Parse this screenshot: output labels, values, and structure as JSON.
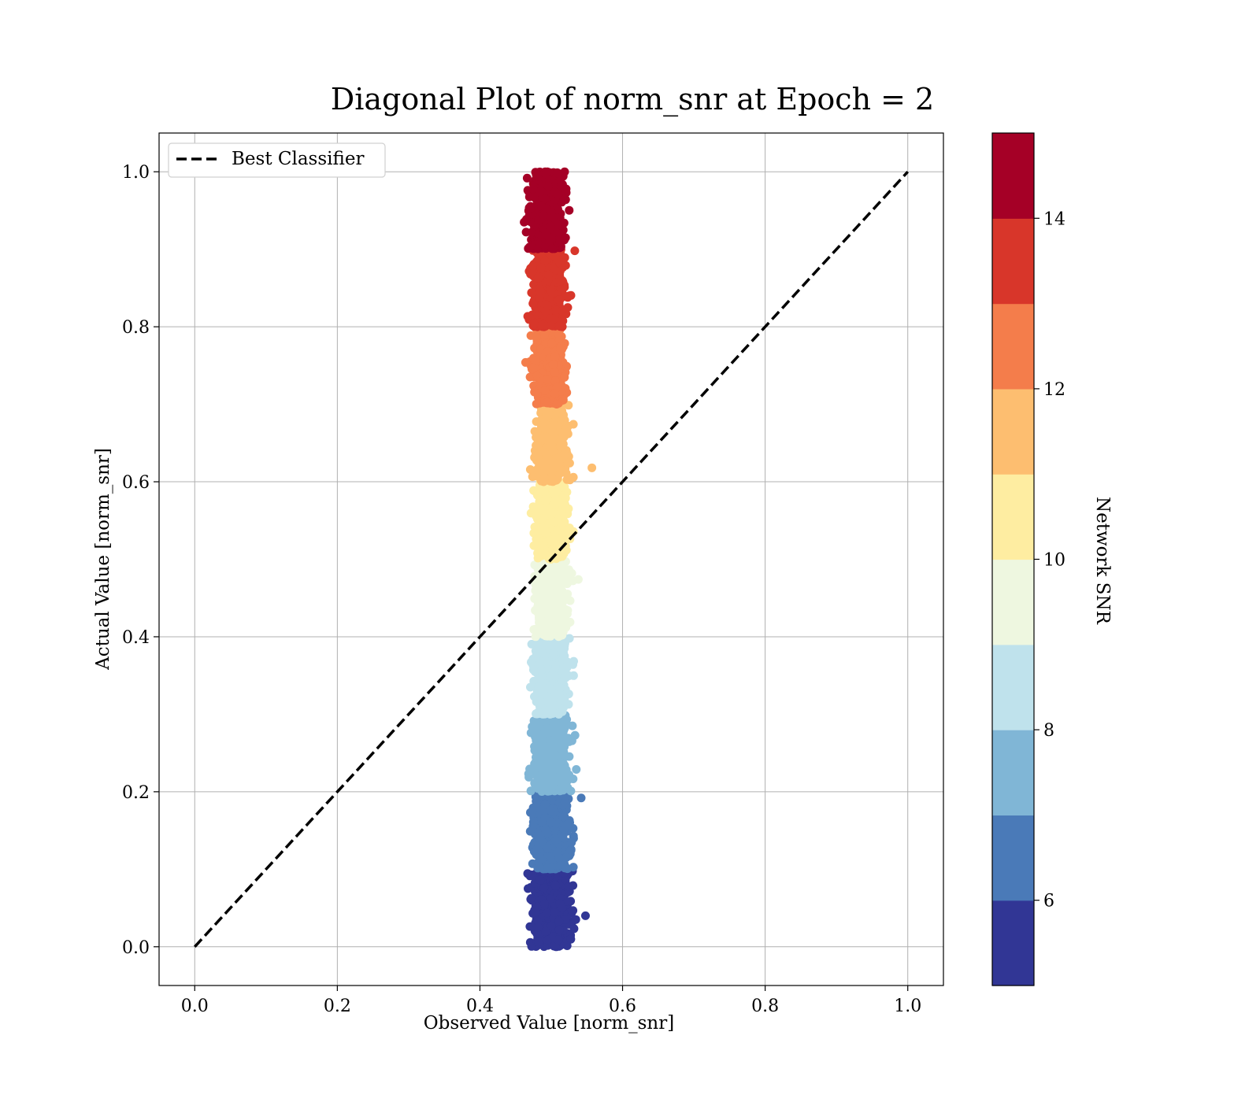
{
  "chart_data": {
    "type": "scatter",
    "title": "Diagonal Plot of norm_snr at Epoch = 2",
    "xlabel": "Observed Value [norm_snr]",
    "ylabel": "Actual Value [norm_snr]",
    "xlim": [
      -0.05,
      1.05
    ],
    "ylim": [
      -0.05,
      1.05
    ],
    "xticks": [
      "0.0",
      "0.2",
      "0.4",
      "0.6",
      "0.8",
      "1.0"
    ],
    "yticks": [
      "0.0",
      "0.2",
      "0.4",
      "0.6",
      "0.8",
      "1.0"
    ],
    "grid": true,
    "legend": {
      "position": "top-left",
      "entries": [
        {
          "label": "Best Classifier",
          "style": "black dashed line"
        }
      ]
    },
    "reference_line": {
      "name": "Best Classifier",
      "x": [
        0.0,
        1.0
      ],
      "y": [
        0.0,
        1.0
      ],
      "color": "#000000",
      "dash": "dashed"
    },
    "colorbar": {
      "label": "Network SNR",
      "range": [
        5,
        15
      ],
      "ticks": [
        "6",
        "8",
        "10",
        "12",
        "14"
      ],
      "bins": [
        {
          "from": 5,
          "to": 6,
          "color": "#313695"
        },
        {
          "from": 6,
          "to": 7,
          "color": "#4a7ab8"
        },
        {
          "from": 7,
          "to": 8,
          "color": "#80b6d6"
        },
        {
          "from": 8,
          "to": 9,
          "color": "#bfe2ec"
        },
        {
          "from": 9,
          "to": 10,
          "color": "#eef7e0"
        },
        {
          "from": 10,
          "to": 11,
          "color": "#feeda1"
        },
        {
          "from": 11,
          "to": 12,
          "color": "#fdbe70"
        },
        {
          "from": 12,
          "to": 13,
          "color": "#f47d4b"
        },
        {
          "from": 13,
          "to": 14,
          "color": "#d8362a"
        },
        {
          "from": 14,
          "to": 15,
          "color": "#a50026"
        }
      ]
    },
    "scatter_clusters": [
      {
        "snr_bin": [
          5,
          6
        ],
        "actual_range": [
          0.0,
          0.1
        ],
        "observed_center": 0.5,
        "observed_spread": 0.028,
        "color": "#313695"
      },
      {
        "snr_bin": [
          6,
          7
        ],
        "actual_range": [
          0.1,
          0.2
        ],
        "observed_center": 0.5,
        "observed_spread": 0.027,
        "color": "#4a7ab8"
      },
      {
        "snr_bin": [
          7,
          8
        ],
        "actual_range": [
          0.2,
          0.3
        ],
        "observed_center": 0.5,
        "observed_spread": 0.026,
        "color": "#80b6d6"
      },
      {
        "snr_bin": [
          8,
          9
        ],
        "actual_range": [
          0.3,
          0.4
        ],
        "observed_center": 0.5,
        "observed_spread": 0.024,
        "color": "#bfe2ec"
      },
      {
        "snr_bin": [
          9,
          10
        ],
        "actual_range": [
          0.4,
          0.5
        ],
        "observed_center": 0.5,
        "observed_spread": 0.023,
        "color": "#eef7e0"
      },
      {
        "snr_bin": [
          10,
          11
        ],
        "actual_range": [
          0.5,
          0.6
        ],
        "observed_center": 0.5,
        "observed_spread": 0.023,
        "color": "#feeda1"
      },
      {
        "snr_bin": [
          11,
          12
        ],
        "actual_range": [
          0.6,
          0.7
        ],
        "observed_center": 0.5,
        "observed_spread": 0.023,
        "color": "#fdbe70"
      },
      {
        "snr_bin": [
          12,
          13
        ],
        "actual_range": [
          0.7,
          0.8
        ],
        "observed_center": 0.497,
        "observed_spread": 0.023,
        "color": "#f47d4b"
      },
      {
        "snr_bin": [
          13,
          14
        ],
        "actual_range": [
          0.8,
          0.9
        ],
        "observed_center": 0.496,
        "observed_spread": 0.024,
        "color": "#d8362a"
      },
      {
        "snr_bin": [
          14,
          15
        ],
        "actual_range": [
          0.9,
          1.0
        ],
        "observed_center": 0.494,
        "observed_spread": 0.025,
        "color": "#a50026"
      }
    ],
    "notable_points": [
      {
        "x": 0.557,
        "y": 0.618,
        "color": "#fdbe70"
      },
      {
        "x": 0.533,
        "y": 0.898,
        "color": "#d8362a"
      },
      {
        "x": 0.538,
        "y": 0.474,
        "color": "#eef7e0"
      },
      {
        "x": 0.548,
        "y": 0.04,
        "color": "#313695"
      },
      {
        "x": 0.542,
        "y": 0.192,
        "color": "#4a7ab8"
      },
      {
        "x": 0.462,
        "y": 0.935,
        "color": "#a50026"
      },
      {
        "x": 0.464,
        "y": 0.754,
        "color": "#f47d4b"
      }
    ]
  }
}
